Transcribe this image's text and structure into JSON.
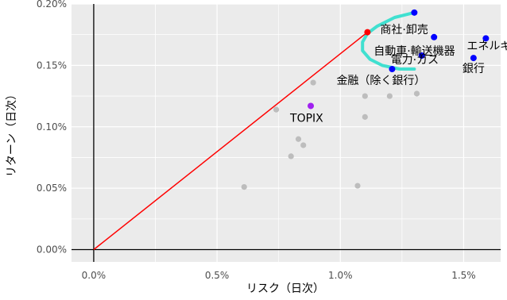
{
  "chart_data": {
    "type": "scatter",
    "title": "",
    "xlabel": "リスク（日次）",
    "ylabel": "リターン（日次）",
    "xlim": [
      -0.0009,
      0.0165
    ],
    "ylim": [
      -0.0001,
      0.002
    ],
    "x_ticks": [
      {
        "value": 0.0,
        "label": "0.0%"
      },
      {
        "value": 0.005,
        "label": "0.5%"
      },
      {
        "value": 0.01,
        "label": "1.0%"
      },
      {
        "value": 0.015,
        "label": "1.5%"
      }
    ],
    "y_ticks": [
      {
        "value": 0.0,
        "label": "0.00%"
      },
      {
        "value": 0.0005,
        "label": "0.05%"
      },
      {
        "value": 0.001,
        "label": "0.10%"
      },
      {
        "value": 0.0015,
        "label": "0.15%"
      },
      {
        "value": 0.002,
        "label": "0.20%"
      }
    ],
    "grid": true,
    "colors": {
      "panel": "#ebebeb",
      "grid": "#ffffff",
      "axis_lines": "#000000",
      "gray_points": "#bdbdbd",
      "blue_points": "#0000ff",
      "topix": "#a020f0",
      "tangent_point": "#ff0000",
      "capital_market_line": "#ff0000",
      "frontier": "#40e0d0"
    },
    "gray_points": [
      {
        "x": 0.0061,
        "y": 0.00051
      },
      {
        "x": 0.0074,
        "y": 0.00114
      },
      {
        "x": 0.008,
        "y": 0.00076
      },
      {
        "x": 0.0083,
        "y": 0.0009
      },
      {
        "x": 0.0085,
        "y": 0.00085
      },
      {
        "x": 0.0089,
        "y": 0.00136
      },
      {
        "x": 0.0107,
        "y": 0.00052
      },
      {
        "x": 0.011,
        "y": 0.00108
      },
      {
        "x": 0.011,
        "y": 0.00125
      },
      {
        "x": 0.012,
        "y": 0.00125
      },
      {
        "x": 0.0131,
        "y": 0.00127
      }
    ],
    "labeled_points": [
      {
        "label": "TOPIX",
        "x": 0.0088,
        "y": 0.00117,
        "color": "#a020f0"
      },
      {
        "label": "商社·卸売",
        "x": 0.013,
        "y": 0.00193,
        "color": "#0000ff"
      },
      {
        "label": "自動車·輸送機器",
        "x": 0.0138,
        "y": 0.00173,
        "color": "#0000ff"
      },
      {
        "label": "電力·ガス",
        "x": 0.0133,
        "y": 0.00158,
        "color": "#0000ff"
      },
      {
        "label": "金融（除く銀行）",
        "x": 0.0121,
        "y": 0.00147,
        "color": "#0000ff"
      },
      {
        "label": "エネルギー",
        "x": 0.0159,
        "y": 0.00172,
        "color": "#0000ff"
      },
      {
        "label": "銀行",
        "x": 0.0154,
        "y": 0.00156,
        "color": "#0000ff"
      }
    ],
    "tangent_point": {
      "x": 0.0111,
      "y": 0.00177
    },
    "capital_market_line": [
      {
        "x": 0.0,
        "y": 0.0
      },
      {
        "x": 0.0111,
        "y": 0.00177
      }
    ],
    "efficient_frontier": [
      {
        "x": 0.013,
        "y": 0.00193
      },
      {
        "x": 0.0122,
        "y": 0.00189
      },
      {
        "x": 0.0115,
        "y": 0.00182
      },
      {
        "x": 0.0111,
        "y": 0.00176
      },
      {
        "x": 0.0109,
        "y": 0.00169
      },
      {
        "x": 0.0109,
        "y": 0.00162
      },
      {
        "x": 0.0112,
        "y": 0.00155
      },
      {
        "x": 0.0117,
        "y": 0.0015
      },
      {
        "x": 0.0124,
        "y": 0.00147
      },
      {
        "x": 0.013,
        "y": 0.00147
      }
    ]
  }
}
